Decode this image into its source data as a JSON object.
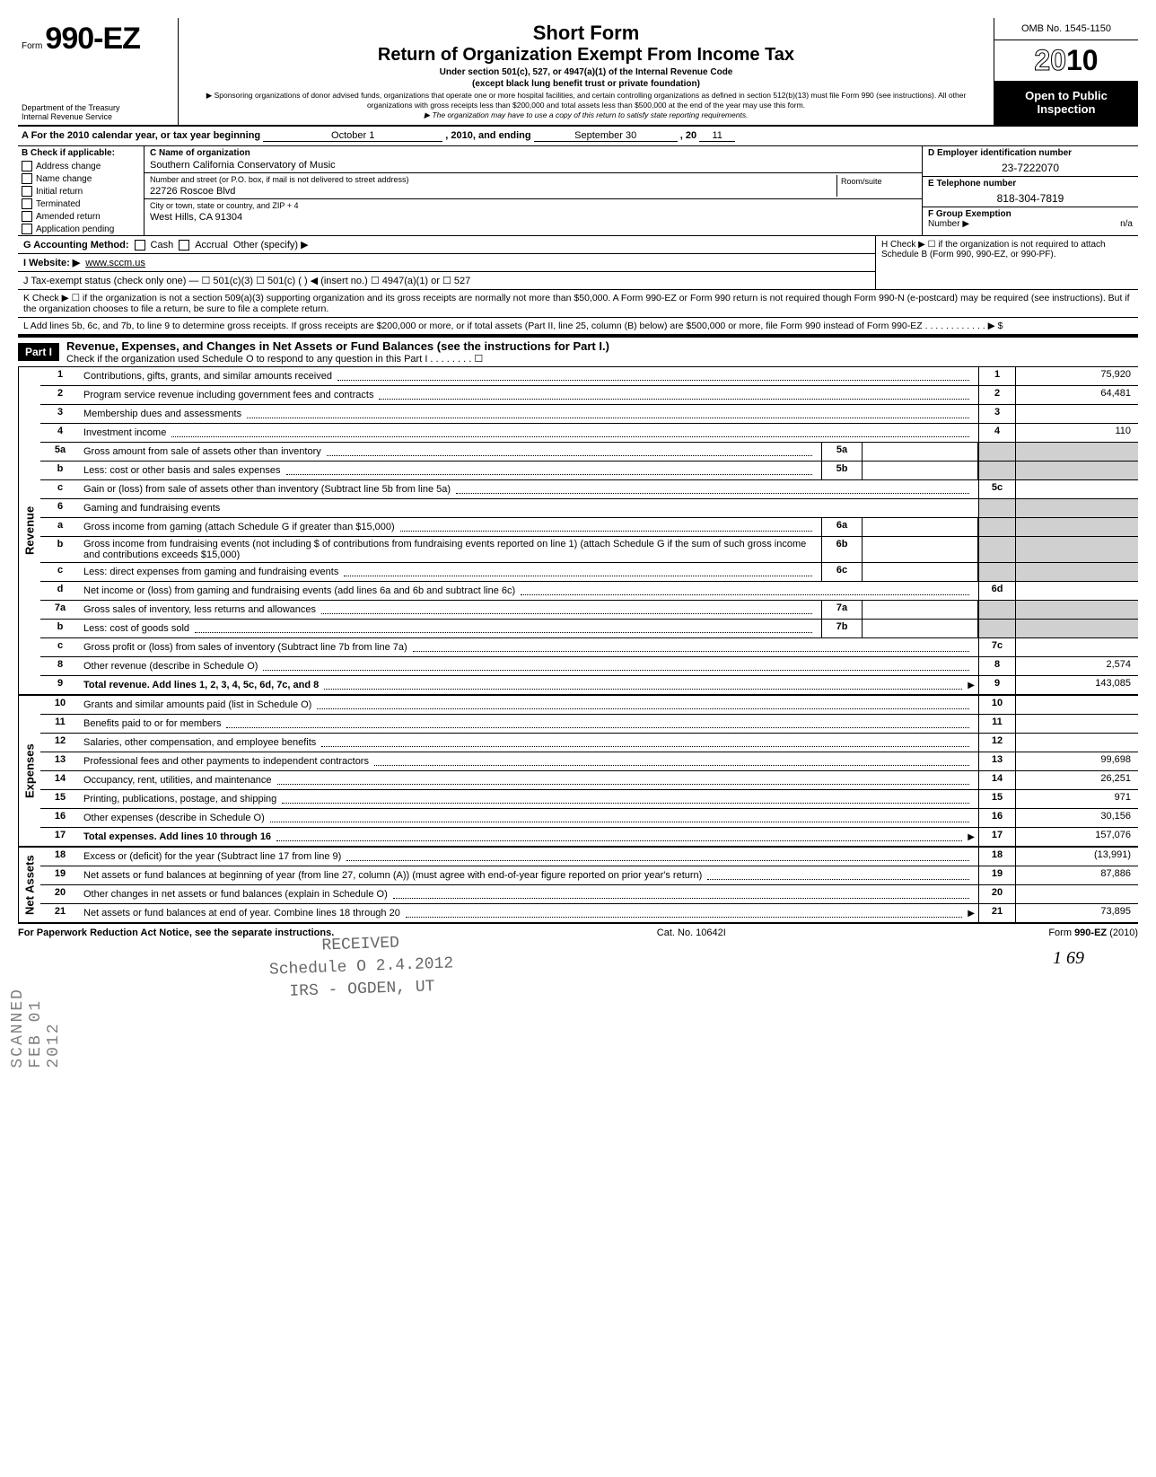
{
  "form": {
    "prefix": "Form",
    "number": "990-EZ",
    "dept1": "Department of the Treasury",
    "dept2": "Internal Revenue Service"
  },
  "title": {
    "line1": "Short Form",
    "line2": "Return of Organization Exempt From Income Tax",
    "line3": "Under section 501(c), 527, or 4947(a)(1) of the Internal Revenue Code",
    "line4": "(except black lung benefit trust or private foundation)",
    "line5": "▶ Sponsoring organizations of donor advised funds, organizations that operate one or more hospital facilities, and certain controlling organizations as defined in section 512(b)(13) must file Form 990 (see instructions). All other organizations with gross receipts less than $200,000 and total assets less than $500,000 at the end of the year may use this form.",
    "line6": "▶ The organization may have to use a copy of this return to satisfy state reporting requirements."
  },
  "right": {
    "omb": "OMB No. 1545-1150",
    "year_prefix": "20",
    "year_suffix": "10",
    "open": "Open to Public Inspection"
  },
  "sectionA": {
    "label": "A  For the 2010 calendar year, or tax year beginning",
    "begin": "October 1",
    "mid": ", 2010, and ending",
    "end": "September 30",
    "yr_label": ", 20",
    "yr": "11"
  },
  "sectionB": {
    "header": "B  Check if applicable:",
    "items": [
      "Address change",
      "Name change",
      "Initial return",
      "Terminated",
      "Amended return",
      "Application pending"
    ]
  },
  "sectionC": {
    "name_label": "C Name of organization",
    "name": "Southern California Conservatory of Music",
    "addr_label": "Number and street (or P.O. box, if mail is not delivered to street address)",
    "room_label": "Room/suite",
    "addr": "22726 Roscoe Blvd",
    "city_label": "City or town, state or country, and ZIP + 4",
    "city": "West Hills, CA 91304"
  },
  "sectionD": {
    "ein_label": "D Employer identification number",
    "ein": "23-7222070",
    "tel_label": "E Telephone number",
    "tel": "818-304-7819",
    "grp_label": "F Group Exemption",
    "grp_label2": "Number ▶",
    "grp": "n/a"
  },
  "lineG": "G  Accounting Method:",
  "lineG_opts": [
    "Cash",
    "Accrual",
    "Other (specify) ▶"
  ],
  "lineH": "H  Check ▶ ☐ if the organization is not required to attach Schedule B (Form 990, 990-EZ, or 990-PF).",
  "lineI_label": "I   Website: ▶",
  "lineI_val": "www.sccm.us",
  "lineJ": "J  Tax-exempt status (check only one) —  ☐ 501(c)(3)   ☐ 501(c) (      ) ◀ (insert no.) ☐ 4947(a)(1) or   ☐ 527",
  "lineK": "K  Check ▶  ☐   if the organization is not a section 509(a)(3) supporting organization and its gross receipts are normally not more than $50,000. A Form 990-EZ or Form 990 return is not required though Form 990-N (e-postcard) may be required (see instructions). But if the organization chooses to file a return, be sure to file a complete return.",
  "lineL": "L  Add lines 5b, 6c, and 7b, to line 9 to determine gross receipts. If gross receipts are $200,000 or more, or if total assets (Part II, line 25, column (B) below) are $500,000 or more, file Form 990 instead of Form 990-EZ   .   .   .   .   .   .   .   .   .   .   .   .   ▶  $",
  "part1": {
    "label": "Part I",
    "title": "Revenue, Expenses, and Changes in Net Assets or Fund Balances (see the instructions for Part I.)",
    "sub": "Check if the organization used Schedule O to respond to any question in this Part I  .   .   .   .   .   .   .   .   ☐"
  },
  "sides": {
    "revenue": "Revenue",
    "expenses": "Expenses",
    "netassets": "Net Assets"
  },
  "rows": [
    {
      "n": "1",
      "d": "Contributions, gifts, grants, and similar amounts received",
      "box": "1",
      "v": "75,920"
    },
    {
      "n": "2",
      "d": "Program service revenue including government fees and contracts",
      "box": "2",
      "v": "64,481"
    },
    {
      "n": "3",
      "d": "Membership dues and assessments",
      "box": "3",
      "v": ""
    },
    {
      "n": "4",
      "d": "Investment income",
      "box": "4",
      "v": "110"
    },
    {
      "n": "5a",
      "d": "Gross amount from sale of assets other than inventory",
      "mid": "5a"
    },
    {
      "n": "b",
      "d": "Less: cost or other basis and sales expenses",
      "mid": "5b"
    },
    {
      "n": "c",
      "d": "Gain or (loss) from sale of assets other than inventory (Subtract line 5b from line 5a)",
      "box": "5c",
      "v": ""
    },
    {
      "n": "6",
      "d": "Gaming and fundraising events"
    },
    {
      "n": "a",
      "d": "Gross income from gaming (attach Schedule G if greater than $15,000)",
      "mid": "6a"
    },
    {
      "n": "b",
      "d": "Gross income from fundraising events (not including $                     of contributions from fundraising events reported on line 1) (attach Schedule G if the sum of such gross income and contributions exceeds $15,000)",
      "mid": "6b"
    },
    {
      "n": "c",
      "d": "Less: direct expenses from gaming and fundraising events",
      "mid": "6c"
    },
    {
      "n": "d",
      "d": "Net income or (loss) from gaming and fundraising events (add lines 6a and 6b and subtract line 6c)",
      "box": "6d",
      "v": ""
    },
    {
      "n": "7a",
      "d": "Gross sales of inventory, less returns and allowances",
      "mid": "7a"
    },
    {
      "n": "b",
      "d": "Less: cost of goods sold",
      "mid": "7b"
    },
    {
      "n": "c",
      "d": "Gross profit or (loss) from sales of inventory (Subtract line 7b from line 7a)",
      "box": "7c",
      "v": ""
    },
    {
      "n": "8",
      "d": "Other revenue (describe in Schedule O)",
      "box": "8",
      "v": "2,574"
    },
    {
      "n": "9",
      "d": "Total revenue. Add lines 1, 2, 3, 4, 5c, 6d, 7c, and 8",
      "box": "9",
      "v": "143,085",
      "bold": true,
      "arrow": true
    }
  ],
  "exp_rows": [
    {
      "n": "10",
      "d": "Grants and similar amounts paid (list in Schedule O)",
      "box": "10",
      "v": ""
    },
    {
      "n": "11",
      "d": "Benefits paid to or for members",
      "box": "11",
      "v": ""
    },
    {
      "n": "12",
      "d": "Salaries, other compensation, and employee benefits",
      "box": "12",
      "v": ""
    },
    {
      "n": "13",
      "d": "Professional fees and other payments to independent contractors",
      "box": "13",
      "v": "99,698"
    },
    {
      "n": "14",
      "d": "Occupancy, rent, utilities, and maintenance",
      "box": "14",
      "v": "26,251"
    },
    {
      "n": "15",
      "d": "Printing, publications, postage, and shipping",
      "box": "15",
      "v": "971"
    },
    {
      "n": "16",
      "d": "Other expenses (describe in Schedule O)",
      "box": "16",
      "v": "30,156"
    },
    {
      "n": "17",
      "d": "Total expenses. Add lines 10 through 16",
      "box": "17",
      "v": "157,076",
      "bold": true,
      "arrow": true
    }
  ],
  "net_rows": [
    {
      "n": "18",
      "d": "Excess or (deficit) for the year (Subtract line 17 from line 9)",
      "box": "18",
      "v": "(13,991)"
    },
    {
      "n": "19",
      "d": "Net assets or fund balances at beginning of year (from line 27, column (A)) (must agree with end-of-year figure reported on prior year's return)",
      "box": "19",
      "v": "87,886"
    },
    {
      "n": "20",
      "d": "Other changes in net assets or fund balances (explain in Schedule O)",
      "box": "20",
      "v": ""
    },
    {
      "n": "21",
      "d": "Net assets or fund balances at end of year. Combine lines 18 through 20",
      "box": "21",
      "v": "73,895",
      "arrow": true
    }
  ],
  "footer": {
    "left": "For Paperwork Reduction Act Notice, see the separate instructions.",
    "mid": "Cat. No. 10642I",
    "right": "Form 990-EZ (2010)"
  },
  "stamp": {
    "l1": "RECEIVED",
    "l2": "Schedule O  2.4.2012",
    "l3": "IRS - OGDEN, UT"
  },
  "side_stamp": "SCANNED FEB 01 2012",
  "handwrite": "1 69"
}
